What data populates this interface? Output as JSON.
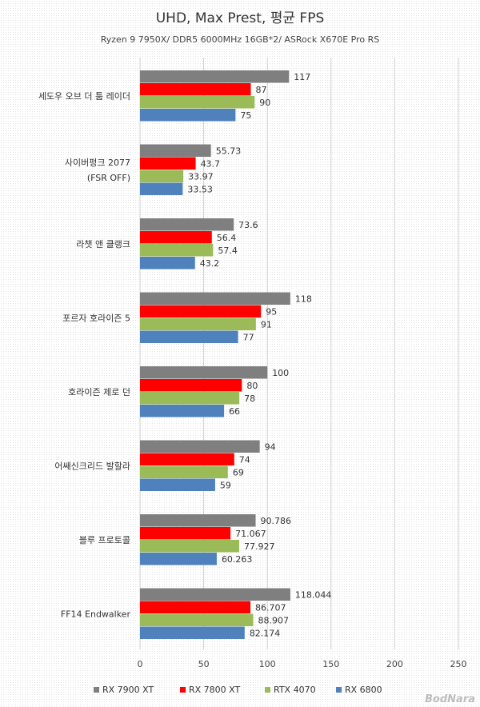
{
  "chart_data": {
    "type": "bar",
    "orientation": "horizontal",
    "title": "UHD, Max Prest, 평균 FPS",
    "subtitle": "Ryzen 9 7950X/ DDR5 6000MHz 16GB*2/ ASRock X670E Pro RS",
    "categories": [
      [
        "세도우 오브 더 툼 레이더"
      ],
      [
        "사이버펑크 2077",
        "(FSR OFF)"
      ],
      [
        "라챗 앤 클랭크"
      ],
      [
        "포르자 호라이즌 5"
      ],
      [
        "호라이즌 제로 던"
      ],
      [
        "어쌔신크리드 발할라"
      ],
      [
        "블루 프로토콜"
      ],
      [
        "FF14 Endwalker"
      ]
    ],
    "series": [
      {
        "name": "RX 7900 XT",
        "color": "#7f7f7f",
        "values": [
          117,
          55.73,
          73.6,
          118,
          100,
          94,
          90.786,
          118.044
        ]
      },
      {
        "name": "RX 7800 XT",
        "color": "#ff0000",
        "values": [
          87,
          43.7,
          56.4,
          95,
          80,
          74,
          71.067,
          86.707
        ]
      },
      {
        "name": "RTX 4070",
        "color": "#9bbb59",
        "values": [
          90,
          33.97,
          57.4,
          91,
          78,
          69,
          77.927,
          88.907
        ]
      },
      {
        "name": "RX 6800",
        "color": "#4f81bd",
        "values": [
          75,
          33.53,
          43.2,
          77,
          66,
          59,
          60.263,
          82.174
        ]
      }
    ],
    "labels": [
      [
        "117",
        "87",
        "90",
        "75"
      ],
      [
        "55.73",
        "43.7",
        "33.97",
        "33.53"
      ],
      [
        "73.6",
        "56.4",
        "57.4",
        "43.2"
      ],
      [
        "118",
        "95",
        "91",
        "77"
      ],
      [
        "100",
        "80",
        "78",
        "66"
      ],
      [
        "94",
        "74",
        "69",
        "59"
      ],
      [
        "90.786",
        "71.067",
        "77.927",
        "60.263"
      ],
      [
        "118.044",
        "86.707",
        "88.907",
        "82.174"
      ]
    ],
    "xlim": [
      0,
      250
    ],
    "xticks": [
      "0",
      "50",
      "100",
      "150",
      "200",
      "250"
    ],
    "grid": true,
    "legend_position": "bottom"
  },
  "watermark": "BodNara"
}
